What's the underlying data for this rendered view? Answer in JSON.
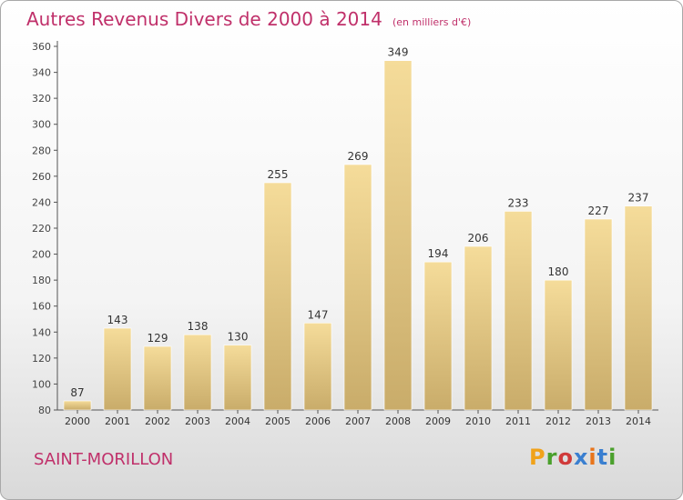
{
  "header": {
    "title": "Autres Revenus Divers de 2000 à 2014",
    "unit": "(en milliers d'€)"
  },
  "footer": {
    "commune": "SAINT-MORILLON",
    "brand": "Proxiti"
  },
  "colors": {
    "title": "#c0306a",
    "bar_light": "#f5dc9a",
    "bar_dark": "#c9ac6a",
    "brand_letters": [
      "#f0a21a",
      "#4aa02c",
      "#d03a3a",
      "#3a7fd0",
      "#e8741a",
      "#3a7fd0",
      "#4aa02c"
    ]
  },
  "chart_data": {
    "type": "bar",
    "title": "Autres Revenus Divers de 2000 à 2014",
    "categories": [
      "2000",
      "2001",
      "2002",
      "2003",
      "2004",
      "2005",
      "2006",
      "2007",
      "2008",
      "2009",
      "2010",
      "2011",
      "2012",
      "2013",
      "2014"
    ],
    "values": [
      87,
      143,
      129,
      138,
      130,
      255,
      147,
      269,
      349,
      194,
      206,
      233,
      180,
      227,
      237
    ],
    "ylim": [
      80,
      360
    ],
    "yticks": [
      80,
      100,
      120,
      140,
      160,
      180,
      200,
      220,
      240,
      260,
      280,
      300,
      320,
      340,
      360
    ],
    "grid": false,
    "legend": "none"
  }
}
